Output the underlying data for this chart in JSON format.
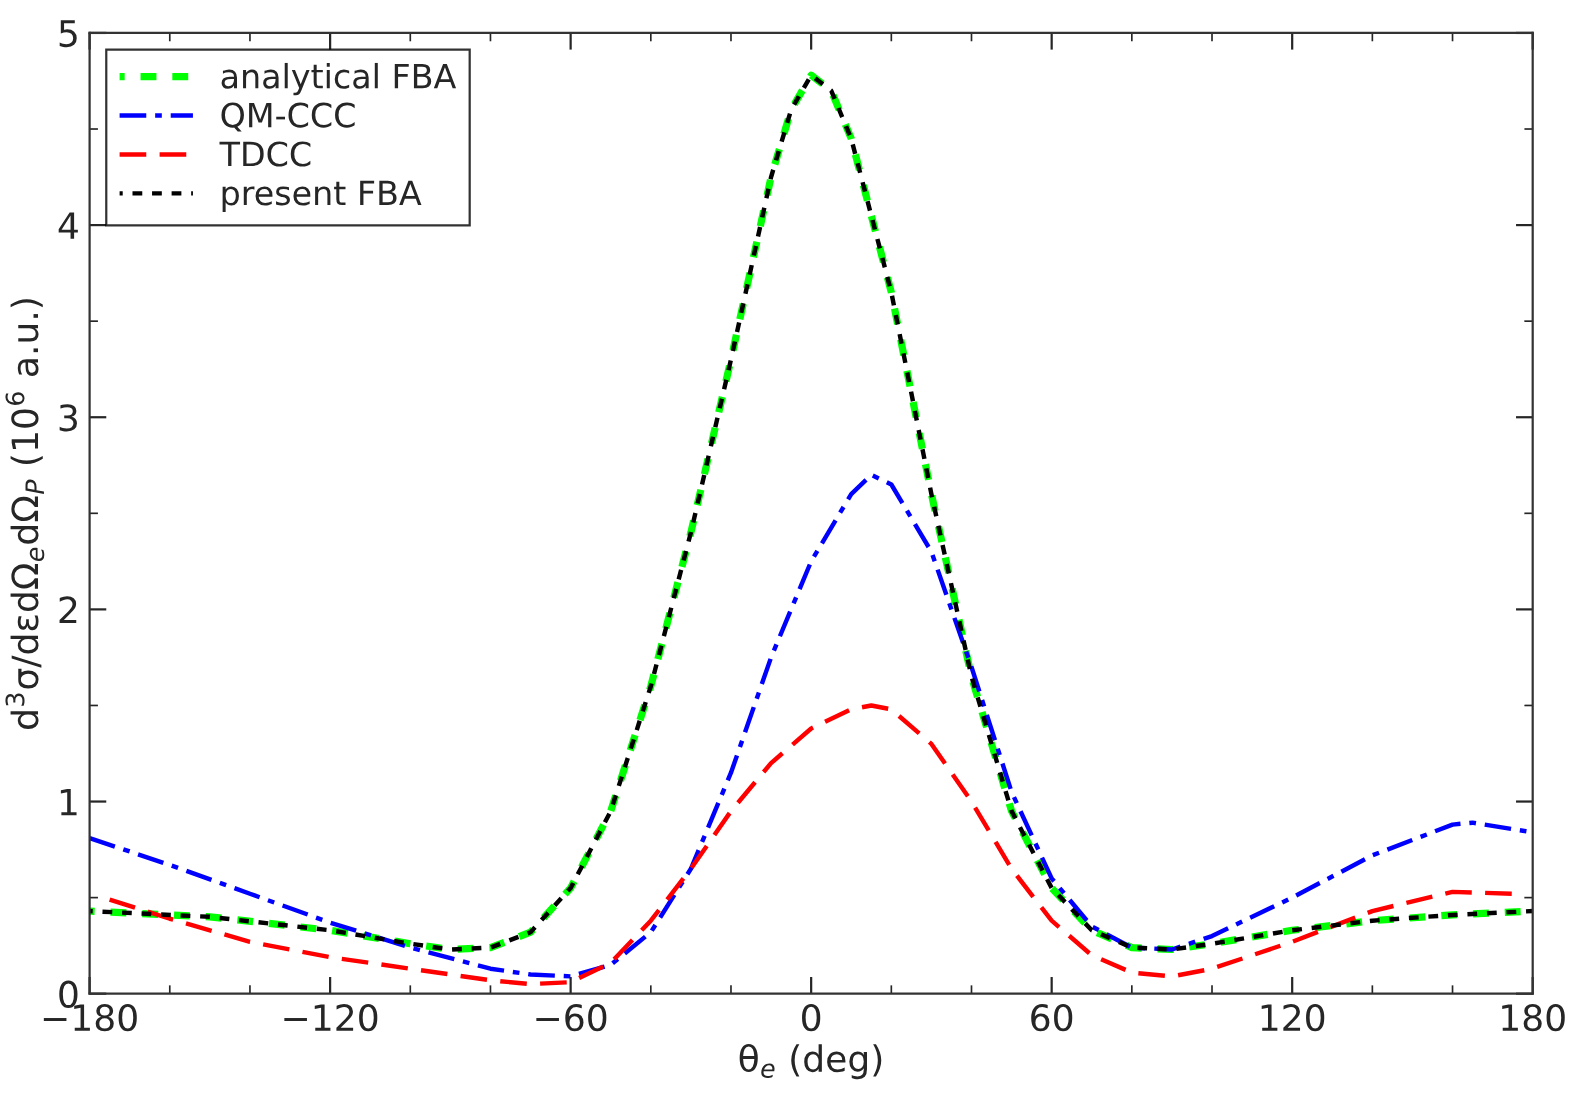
{
  "chart_data": {
    "type": "line",
    "xlabel": "θ$_{e}$ (deg)",
    "ylabel": "d$^{3}$σ/dεdΩ$_{e}$dΩ$_{P}$ (10$^{6}$ a.u.)",
    "xlim": [
      -180,
      180
    ],
    "xticks": [
      -180,
      -120,
      -60,
      0,
      60,
      120,
      180
    ],
    "ylim": [
      0,
      5
    ],
    "yticks": [
      0,
      1,
      2,
      3,
      4,
      5
    ],
    "grid": false,
    "legend": "top left",
    "series": [
      {
        "name": "analytical FBA",
        "color": "#00ff00",
        "line_style": "dotted",
        "x": [
          -180,
          -150,
          -120,
          -100,
          -90,
          -80,
          -70,
          -60,
          -50,
          -40,
          -30,
          -20,
          -10,
          -5,
          0,
          5,
          10,
          20,
          30,
          40,
          50,
          60,
          70,
          80,
          90,
          100,
          120,
          140,
          160,
          180
        ],
        "values": [
          0.43,
          0.4,
          0.33,
          0.26,
          0.23,
          0.24,
          0.32,
          0.55,
          0.95,
          1.6,
          2.4,
          3.3,
          4.25,
          4.6,
          4.78,
          4.7,
          4.45,
          3.65,
          2.6,
          1.65,
          0.95,
          0.55,
          0.33,
          0.24,
          0.23,
          0.26,
          0.33,
          0.38,
          0.41,
          0.43
        ]
      },
      {
        "name": "QM-CCC",
        "color": "#0000ff",
        "line_style": "dashdot",
        "x": [
          -180,
          -160,
          -140,
          -120,
          -100,
          -80,
          -70,
          -60,
          -50,
          -40,
          -30,
          -20,
          -10,
          0,
          10,
          15,
          20,
          30,
          40,
          50,
          60,
          70,
          80,
          90,
          100,
          120,
          140,
          160,
          165,
          180
        ],
        "values": [
          0.81,
          0.67,
          0.52,
          0.37,
          0.24,
          0.13,
          0.1,
          0.09,
          0.15,
          0.32,
          0.65,
          1.15,
          1.75,
          2.25,
          2.6,
          2.7,
          2.65,
          2.3,
          1.7,
          1.05,
          0.6,
          0.35,
          0.24,
          0.23,
          0.3,
          0.5,
          0.72,
          0.88,
          0.89,
          0.84
        ]
      },
      {
        "name": "TDCC",
        "color": "#ff0000",
        "line_style": "dashed",
        "x": [
          -175,
          -160,
          -140,
          -120,
          -100,
          -80,
          -70,
          -60,
          -50,
          -40,
          -30,
          -20,
          -10,
          0,
          10,
          15,
          20,
          30,
          40,
          50,
          60,
          70,
          80,
          90,
          100,
          120,
          140,
          160,
          175
        ],
        "values": [
          0.49,
          0.39,
          0.27,
          0.19,
          0.13,
          0.07,
          0.05,
          0.06,
          0.16,
          0.38,
          0.65,
          0.95,
          1.2,
          1.38,
          1.48,
          1.5,
          1.48,
          1.3,
          1.0,
          0.65,
          0.38,
          0.2,
          0.11,
          0.09,
          0.13,
          0.27,
          0.43,
          0.53,
          0.52
        ]
      },
      {
        "name": "present FBA",
        "color": "#000000",
        "line_style": "dotted",
        "x": [
          -180,
          -150,
          -120,
          -100,
          -90,
          -80,
          -70,
          -60,
          -50,
          -40,
          -30,
          -20,
          -10,
          -5,
          0,
          5,
          10,
          20,
          30,
          40,
          50,
          60,
          70,
          80,
          90,
          100,
          120,
          140,
          160,
          180
        ],
        "values": [
          0.43,
          0.4,
          0.33,
          0.26,
          0.23,
          0.24,
          0.32,
          0.55,
          0.95,
          1.6,
          2.4,
          3.3,
          4.25,
          4.6,
          4.78,
          4.7,
          4.45,
          3.65,
          2.6,
          1.65,
          0.95,
          0.55,
          0.33,
          0.24,
          0.23,
          0.26,
          0.33,
          0.38,
          0.41,
          0.43
        ]
      }
    ]
  }
}
